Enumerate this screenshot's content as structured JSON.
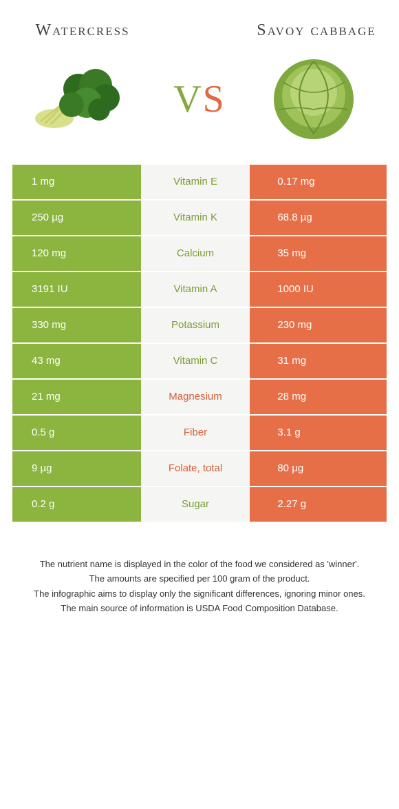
{
  "colors": {
    "left": "#8cb53f",
    "right": "#e76f47",
    "mid_bg": "#f5f5f3",
    "nutrient_left_win": "#7a9e34",
    "nutrient_right_win": "#d45f3a"
  },
  "header": {
    "left_title": "Watercress",
    "right_title": "Savoy cabbage",
    "vs_v": "V",
    "vs_s": "S"
  },
  "rows": [
    {
      "left": "1 mg",
      "nutrient": "Vitamin E",
      "right": "0.17 mg",
      "winner": "left"
    },
    {
      "left": "250 µg",
      "nutrient": "Vitamin K",
      "right": "68.8 µg",
      "winner": "left"
    },
    {
      "left": "120 mg",
      "nutrient": "Calcium",
      "right": "35 mg",
      "winner": "left"
    },
    {
      "left": "3191 IU",
      "nutrient": "Vitamin A",
      "right": "1000 IU",
      "winner": "left"
    },
    {
      "left": "330 mg",
      "nutrient": "Potassium",
      "right": "230 mg",
      "winner": "left"
    },
    {
      "left": "43 mg",
      "nutrient": "Vitamin C",
      "right": "31 mg",
      "winner": "left"
    },
    {
      "left": "21 mg",
      "nutrient": "Magnesium",
      "right": "28 mg",
      "winner": "right"
    },
    {
      "left": "0.5 g",
      "nutrient": "Fiber",
      "right": "3.1 g",
      "winner": "right"
    },
    {
      "left": "9 µg",
      "nutrient": "Folate, total",
      "right": "80 µg",
      "winner": "right"
    },
    {
      "left": "0.2 g",
      "nutrient": "Sugar",
      "right": "2.27 g",
      "winner": "left"
    }
  ],
  "footnotes": [
    "The nutrient name is displayed in the color of the food we considered as 'winner'.",
    "The amounts are specified per 100 gram of the product.",
    "The infographic aims to display only the significant differences, ignoring minor ones.",
    "The main source of information is USDA Food Composition Database."
  ]
}
